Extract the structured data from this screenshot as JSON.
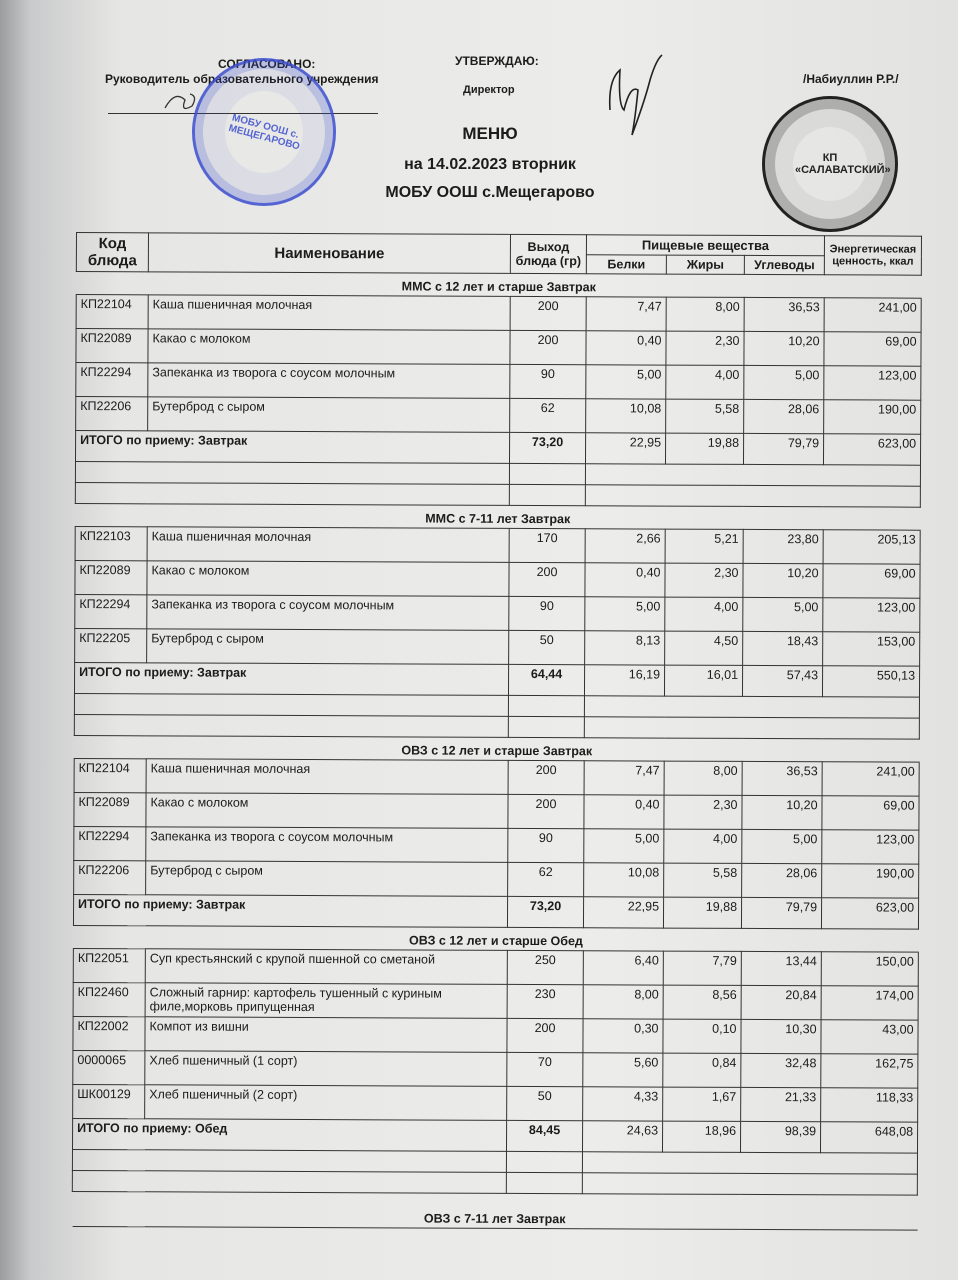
{
  "header": {
    "approved_label": "СОГЛАСОВАНО:",
    "approved_role": "Руководитель образовательного учреждения",
    "confirm_label": "УТВЕРЖДАЮ:",
    "confirm_role": "Директор",
    "director_name": "/Набиуллин Р.Р./",
    "menu_title": "МЕНЮ",
    "date_line": "на 14.02.2023  вторник",
    "school": "МОБУ ООШ с.Мещегарово"
  },
  "stamps": {
    "blue_text": "МОБУ ООШ с. МЕЩЕГАРОВО",
    "black_text": "КП «САЛАВАТСКИЙ»",
    "blue_color": "#3b4ed0"
  },
  "table": {
    "headers": {
      "code": "Код блюда",
      "name": "Наименование",
      "yield": "Выход блюда (гр)",
      "nutrients": "Пищевые вещества",
      "protein": "Белки",
      "fat": "Жиры",
      "carbs": "Углеводы",
      "energy": "Энергетическая ценность, ккал"
    },
    "sections": [
      {
        "title": "ММС с 12 лет и старше Завтрак",
        "rows": [
          {
            "code": "КП22104",
            "name": "Каша пшеничная молочная",
            "yield": "200",
            "protein": "7,47",
            "fat": "8,00",
            "carbs": "36,53",
            "energy": "241,00"
          },
          {
            "code": "КП22089",
            "name": "Какао с молоком",
            "yield": "200",
            "protein": "0,40",
            "fat": "2,30",
            "carbs": "10,20",
            "energy": "69,00"
          },
          {
            "code": "КП22294",
            "name": "Запеканка из творога с соусом молочным",
            "yield": "90",
            "protein": "5,00",
            "fat": "4,00",
            "carbs": "5,00",
            "energy": "123,00"
          },
          {
            "code": "КП22206",
            "name": "Бутерброд с сыром",
            "yield": "62",
            "protein": "10,08",
            "fat": "5,58",
            "carbs": "28,06",
            "energy": "190,00"
          }
        ],
        "total": {
          "label": "ИТОГО по приему: Завтрак",
          "yield": "73,20",
          "protein": "22,95",
          "fat": "19,88",
          "carbs": "79,79",
          "energy": "623,00"
        },
        "empty_rows": 2
      },
      {
        "title": "ММС с 7-11 лет Завтрак",
        "rows": [
          {
            "code": "КП22103",
            "name": "Каша пшеничная молочная",
            "yield": "170",
            "protein": "2,66",
            "fat": "5,21",
            "carbs": "23,80",
            "energy": "205,13"
          },
          {
            "code": "КП22089",
            "name": "Какао с молоком",
            "yield": "200",
            "protein": "0,40",
            "fat": "2,30",
            "carbs": "10,20",
            "energy": "69,00"
          },
          {
            "code": "КП22294",
            "name": "Запеканка из творога с соусом молочным",
            "yield": "90",
            "protein": "5,00",
            "fat": "4,00",
            "carbs": "5,00",
            "energy": "123,00"
          },
          {
            "code": "КП22205",
            "name": "Бутерброд с сыром",
            "yield": "50",
            "protein": "8,13",
            "fat": "4,50",
            "carbs": "18,43",
            "energy": "153,00"
          }
        ],
        "total": {
          "label": "ИТОГО по приему: Завтрак",
          "yield": "64,44",
          "protein": "16,19",
          "fat": "16,01",
          "carbs": "57,43",
          "energy": "550,13"
        },
        "empty_rows": 2
      },
      {
        "title": "ОВЗ с 12 лет и старше Завтрак",
        "rows": [
          {
            "code": "КП22104",
            "name": "Каша пшеничная молочная",
            "yield": "200",
            "protein": "7,47",
            "fat": "8,00",
            "carbs": "36,53",
            "energy": "241,00"
          },
          {
            "code": "КП22089",
            "name": "Какао с молоком",
            "yield": "200",
            "protein": "0,40",
            "fat": "2,30",
            "carbs": "10,20",
            "energy": "69,00"
          },
          {
            "code": "КП22294",
            "name": "Запеканка из творога с соусом молочным",
            "yield": "90",
            "protein": "5,00",
            "fat": "4,00",
            "carbs": "5,00",
            "energy": "123,00"
          },
          {
            "code": "КП22206",
            "name": "Бутерброд с сыром",
            "yield": "62",
            "protein": "10,08",
            "fat": "5,58",
            "carbs": "28,06",
            "energy": "190,00"
          }
        ],
        "total": {
          "label": "ИТОГО по приему: Завтрак",
          "yield": "73,20",
          "protein": "22,95",
          "fat": "19,88",
          "carbs": "79,79",
          "energy": "623,00"
        },
        "empty_rows": 0
      },
      {
        "title": "ОВЗ с 12 лет и старше Обед",
        "rows": [
          {
            "code": "КП22051",
            "name": "Суп крестьянский с крупой пшенной со сметаной",
            "yield": "250",
            "protein": "6,40",
            "fat": "7,79",
            "carbs": "13,44",
            "energy": "150,00"
          },
          {
            "code": "КП22460",
            "name": "Сложный гарнир: картофель тушенный с куриным филе,морковь припущенная",
            "yield": "230",
            "protein": "8,00",
            "fat": "8,56",
            "carbs": "20,84",
            "energy": "174,00"
          },
          {
            "code": "КП22002",
            "name": "Компот из вишни",
            "yield": "200",
            "protein": "0,30",
            "fat": "0,10",
            "carbs": "10,30",
            "energy": "43,00"
          },
          {
            "code": "0000065",
            "name": "Хлеб пшеничный (1 сорт)",
            "yield": "70",
            "protein": "5,60",
            "fat": "0,84",
            "carbs": "32,48",
            "energy": "162,75"
          },
          {
            "code": "ШК00129",
            "name": "Хлеб пшеничный (2 сорт)",
            "yield": "50",
            "protein": "4,33",
            "fat": "1,67",
            "carbs": "21,33",
            "energy": "118,33"
          }
        ],
        "total": {
          "label": "ИТОГО по приему: Обед",
          "yield": "84,45",
          "protein": "24,63",
          "fat": "18,96",
          "carbs": "98,39",
          "energy": "648,08"
        },
        "empty_rows": 2
      }
    ],
    "next_section_title": "ОВЗ с 7-11 лет Завтрак"
  }
}
